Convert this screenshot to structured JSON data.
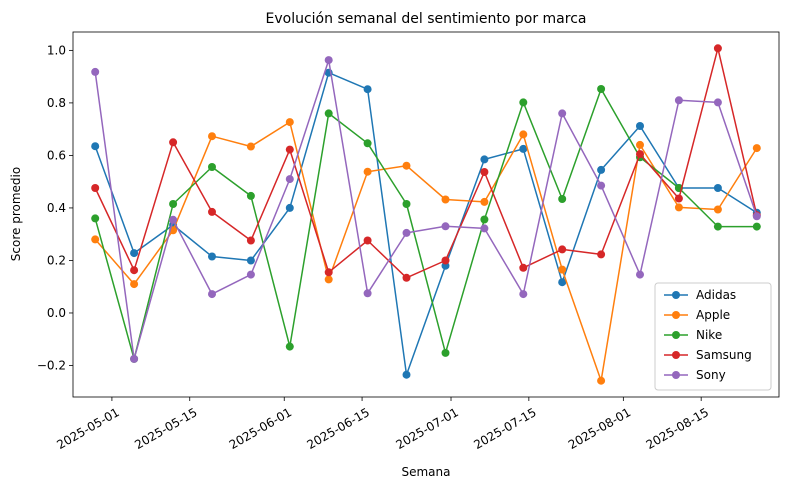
{
  "chart_data": {
    "type": "line",
    "title": "Evolución semanal del sentimiento por marca",
    "xlabel": "Semana",
    "ylabel": "Score promedio",
    "x": [
      "2025-04-28",
      "2025-05-05",
      "2025-05-12",
      "2025-05-19",
      "2025-05-26",
      "2025-06-02",
      "2025-06-09",
      "2025-06-16",
      "2025-06-23",
      "2025-06-30",
      "2025-07-07",
      "2025-07-14",
      "2025-07-21",
      "2025-07-28",
      "2025-08-04",
      "2025-08-11",
      "2025-08-18",
      "2025-08-25"
    ],
    "xticks": [
      "2025-05-01",
      "2025-05-15",
      "2025-06-01",
      "2025-06-15",
      "2025-07-01",
      "2025-07-15",
      "2025-08-01",
      "2025-08-15"
    ],
    "xlim": [
      "2025-04-24",
      "2025-08-29"
    ],
    "ylim": [
      -0.32,
      1.07
    ],
    "yticks": [
      -0.2,
      0.0,
      0.2,
      0.4,
      0.6,
      0.8,
      1.0
    ],
    "ytick_labels": [
      "−0.2",
      "0.0",
      "0.2",
      "0.4",
      "0.6",
      "0.8",
      "1.0"
    ],
    "grid": false,
    "legend": "lower-right",
    "series": [
      {
        "name": "Adidas",
        "color": "#1f77b4",
        "values": [
          0.635,
          0.228,
          0.335,
          0.215,
          0.2,
          0.4,
          0.915,
          0.852,
          -0.235,
          0.18,
          0.585,
          0.625,
          0.117,
          0.545,
          0.712,
          0.476,
          0.476,
          0.382
        ]
      },
      {
        "name": "Apple",
        "color": "#ff7f0e",
        "values": [
          0.28,
          0.11,
          0.315,
          0.673,
          0.634,
          0.727,
          0.128,
          0.538,
          0.561,
          0.432,
          0.423,
          0.68,
          0.165,
          -0.258,
          0.64,
          0.402,
          0.394,
          0.628
        ]
      },
      {
        "name": "Nike",
        "color": "#2ca02c",
        "values": [
          0.36,
          -0.175,
          0.415,
          0.556,
          0.446,
          -0.128,
          0.76,
          0.646,
          0.415,
          -0.152,
          0.356,
          0.802,
          0.434,
          0.853,
          0.593,
          0.476,
          0.329,
          0.329
        ]
      },
      {
        "name": "Samsung",
        "color": "#d62728",
        "values": [
          0.476,
          0.163,
          0.65,
          0.385,
          0.276,
          0.622,
          0.155,
          0.276,
          0.134,
          0.2,
          0.537,
          0.172,
          0.242,
          0.223,
          0.605,
          0.436,
          1.008,
          0.372
        ]
      },
      {
        "name": "Sony",
        "color": "#9467bd",
        "values": [
          0.918,
          -0.175,
          0.355,
          0.072,
          0.146,
          0.51,
          0.963,
          0.075,
          0.305,
          0.33,
          0.322,
          0.072,
          0.76,
          0.485,
          0.146,
          0.81,
          0.802,
          0.368
        ]
      }
    ]
  }
}
